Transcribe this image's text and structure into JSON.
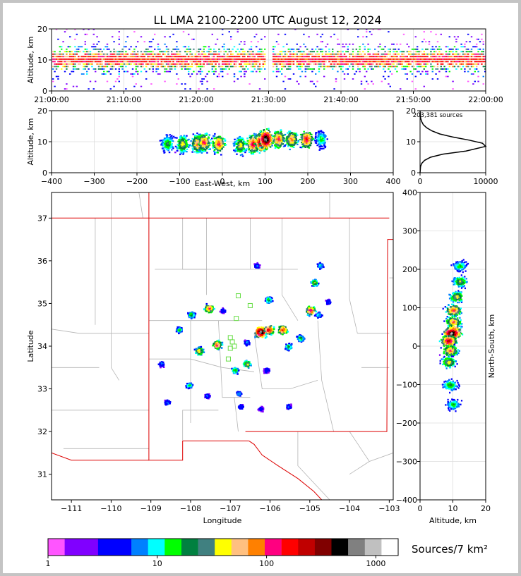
{
  "title": "LL LMA 2100-2200 UTC August 12, 2024",
  "colorbar_label": "Sources/7 km²",
  "source_count": "203,381 sources",
  "colors": {
    "scale": [
      "#ff55ff",
      "#8000ff",
      "#8000ff",
      "#0000ff",
      "#0000ff",
      "#0080ff",
      "#00ffff",
      "#00ff00",
      "#008040",
      "#408080",
      "#ffff00",
      "#ffc080",
      "#ff8000",
      "#ff0080",
      "#ff0000",
      "#c00000",
      "#800000",
      "#000000",
      "#808080",
      "#c0c0c0",
      "#ffffff"
    ],
    "state_border": "#dd0000",
    "county_line": "#b4b4b4"
  },
  "chart_data": [
    {
      "id": "time_height",
      "type": "heatmap",
      "xlabel": "",
      "ylabel": "Altitude, km",
      "xlim": [
        "21:00:00",
        "22:00:00"
      ],
      "ylim": [
        0,
        20
      ],
      "xticks": [
        "21:00:00",
        "21:10:00",
        "21:20:00",
        "21:30:00",
        "21:40:00",
        "21:50:00",
        "22:00:00"
      ],
      "yticks": [
        "0",
        "10",
        "20"
      ],
      "data_gap": [
        "21:29:30",
        "21:30:20"
      ],
      "core_altitude_km": [
        5,
        15
      ]
    },
    {
      "id": "ew_height",
      "type": "heatmap",
      "xlabel": "East-West, km",
      "ylabel": "Altitude, km",
      "xlim": [
        -400,
        400
      ],
      "ylim": [
        0,
        20
      ],
      "xticks": [
        "−400",
        "−300",
        "−200",
        "−100",
        "0",
        "100",
        "200",
        "300",
        "400"
      ],
      "yticks": [
        "0",
        "10",
        "20"
      ],
      "cells": [
        {
          "x": -130,
          "z": 9.5,
          "level": 9
        },
        {
          "x": -95,
          "z": 9.5,
          "level": 11
        },
        {
          "x": -60,
          "z": 9.5,
          "level": 13
        },
        {
          "x": -45,
          "z": 10,
          "level": 14
        },
        {
          "x": -10,
          "z": 9.5,
          "level": 14
        },
        {
          "x": 40,
          "z": 9,
          "level": 11
        },
        {
          "x": 70,
          "z": 9.5,
          "level": 15
        },
        {
          "x": 90,
          "z": 10,
          "level": 18
        },
        {
          "x": 100,
          "z": 11,
          "level": 20
        },
        {
          "x": 130,
          "z": 11,
          "level": 14
        },
        {
          "x": 160,
          "z": 11,
          "level": 13
        },
        {
          "x": 195,
          "z": 11,
          "level": 15
        },
        {
          "x": 230,
          "z": 11,
          "level": 8
        }
      ]
    },
    {
      "id": "altitude_histogram",
      "type": "line",
      "xlabel": "",
      "ylabel": "",
      "xlim": [
        0,
        10000
      ],
      "ylim": [
        0,
        20
      ],
      "xticks": [
        "0",
        "10000"
      ],
      "yticks": [
        "0",
        "10",
        "20"
      ],
      "x": [
        0,
        80,
        250,
        700,
        1600,
        3500,
        7000,
        10000,
        9500,
        7500,
        5000,
        3000,
        1800,
        1000,
        500,
        250,
        100,
        30,
        0
      ],
      "y": [
        0,
        2,
        3,
        4,
        5,
        6,
        7,
        8.5,
        9.5,
        10.5,
        11.5,
        12.5,
        13.5,
        14.5,
        15.5,
        16.5,
        17.5,
        19,
        20
      ]
    },
    {
      "id": "plan_view",
      "type": "heatmap",
      "xlabel": "Longitude",
      "ylabel": "Latitude",
      "xlim": [
        -111.5,
        -102.9
      ],
      "ylim": [
        30.4,
        37.6
      ],
      "xticks": [
        "−111",
        "−110",
        "−109",
        "−108",
        "−107",
        "−106",
        "−105",
        "−104",
        "−103"
      ],
      "yticks": [
        "31",
        "32",
        "33",
        "34",
        "35",
        "36",
        "37"
      ],
      "stations": [
        {
          "lon": -106.8,
          "lat": 35.18
        },
        {
          "lon": -106.5,
          "lat": 34.95
        },
        {
          "lon": -106.85,
          "lat": 34.65
        },
        {
          "lon": -107.0,
          "lat": 34.2
        },
        {
          "lon": -107.0,
          "lat": 33.95
        },
        {
          "lon": -106.9,
          "lat": 34.0
        },
        {
          "lon": -107.05,
          "lat": 33.7
        },
        {
          "lon": -106.95,
          "lat": 34.1
        }
      ],
      "cells": [
        {
          "lon": -106.25,
          "lat": 34.35,
          "level": 20
        },
        {
          "lon": -106.05,
          "lat": 34.4,
          "level": 16
        },
        {
          "lon": -105.7,
          "lat": 34.4,
          "level": 15
        },
        {
          "lon": -105.55,
          "lat": 34.0,
          "level": 9
        },
        {
          "lon": -105.25,
          "lat": 34.2,
          "level": 9
        },
        {
          "lon": -105.0,
          "lat": 34.85,
          "level": 15
        },
        {
          "lon": -104.9,
          "lat": 35.5,
          "level": 10
        },
        {
          "lon": -104.75,
          "lat": 35.9,
          "level": 7
        },
        {
          "lon": -106.05,
          "lat": 35.1,
          "level": 9
        },
        {
          "lon": -106.35,
          "lat": 35.9,
          "level": 5
        },
        {
          "lon": -107.55,
          "lat": 34.9,
          "level": 14
        },
        {
          "lon": -107.35,
          "lat": 34.05,
          "level": 14
        },
        {
          "lon": -107.8,
          "lat": 33.9,
          "level": 12
        },
        {
          "lon": -108.0,
          "lat": 34.75,
          "level": 9
        },
        {
          "lon": -108.3,
          "lat": 34.4,
          "level": 8
        },
        {
          "lon": -106.6,
          "lat": 33.6,
          "level": 11
        },
        {
          "lon": -106.9,
          "lat": 33.45,
          "level": 9
        },
        {
          "lon": -108.05,
          "lat": 33.1,
          "level": 8
        },
        {
          "lon": -108.75,
          "lat": 33.6,
          "level": 6
        },
        {
          "lon": -108.6,
          "lat": 32.7,
          "level": 6
        },
        {
          "lon": -107.6,
          "lat": 32.85,
          "level": 5
        },
        {
          "lon": -106.8,
          "lat": 32.9,
          "level": 6
        },
        {
          "lon": -106.75,
          "lat": 32.6,
          "level": 5
        },
        {
          "lon": -106.1,
          "lat": 33.45,
          "level": 5
        },
        {
          "lon": -105.55,
          "lat": 32.6,
          "level": 5
        },
        {
          "lon": -106.25,
          "lat": 32.55,
          "level": 4
        },
        {
          "lon": -106.6,
          "lat": 34.1,
          "level": 6
        },
        {
          "lon": -107.2,
          "lat": 34.85,
          "level": 5
        },
        {
          "lon": -104.55,
          "lat": 35.05,
          "level": 5
        },
        {
          "lon": -104.8,
          "lat": 34.75,
          "level": 7
        }
      ]
    },
    {
      "id": "ns_height",
      "type": "heatmap",
      "xlabel": "Altitude, km",
      "ylabel": "North-South, km",
      "xlim": [
        0,
        20
      ],
      "ylim": [
        -400,
        400
      ],
      "xticks": [
        "0",
        "10",
        "20"
      ],
      "yticks": [
        "−400",
        "−300",
        "−200",
        "−100",
        "0",
        "100",
        "200",
        "300",
        "400"
      ],
      "cells": [
        {
          "z": 12,
          "y": 210,
          "level": 8
        },
        {
          "z": 12,
          "y": 170,
          "level": 10
        },
        {
          "z": 11,
          "y": 130,
          "level": 11
        },
        {
          "z": 10,
          "y": 95,
          "level": 14
        },
        {
          "z": 10,
          "y": 65,
          "level": 13
        },
        {
          "z": 10,
          "y": 40,
          "level": 18
        },
        {
          "z": 9.5,
          "y": 35,
          "level": 20
        },
        {
          "z": 8.5,
          "y": 15,
          "level": 16
        },
        {
          "z": 9,
          "y": -10,
          "level": 13
        },
        {
          "z": 8.5,
          "y": -40,
          "level": 11
        },
        {
          "z": 9,
          "y": -100,
          "level": 9
        },
        {
          "z": 10,
          "y": -150,
          "level": 8
        }
      ]
    },
    {
      "id": "colorbar",
      "type": "heatmap",
      "scale": "log",
      "xlim": [
        1,
        1600
      ],
      "xticks": [
        "1",
        "10",
        "100",
        "1000"
      ]
    }
  ]
}
